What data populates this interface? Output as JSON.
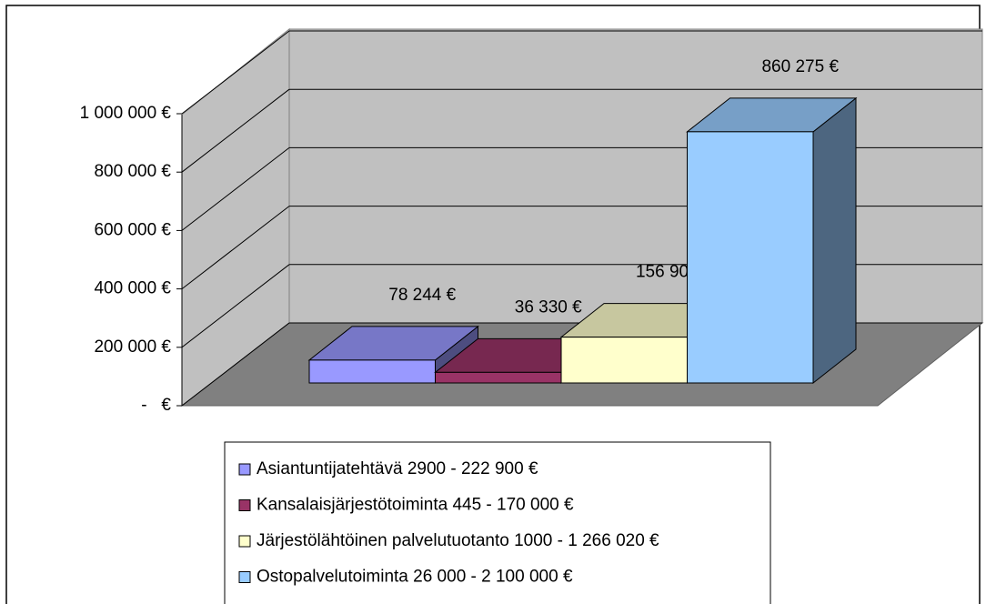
{
  "chart_data": {
    "type": "bar3d",
    "series": [
      {
        "name": "Asiantuntijatehtävä 2900 - 222 900 €",
        "color": "#9999ff",
        "values": [
          78244
        ],
        "value_labels": [
          "78 244 €"
        ]
      },
      {
        "name": "Kansalaisjärjestötoiminta 445 - 170 000 €",
        "color": "#993366",
        "values": [
          36330
        ],
        "value_labels": [
          "36 330 €"
        ]
      },
      {
        "name": "Järjestölähtöinen palvelutuotanto 1000 - 1 266 020 €",
        "color": "#ffffcc",
        "values": [
          156905
        ],
        "value_labels": [
          "156 905 €"
        ]
      },
      {
        "name": "Ostopalvelutoiminta 26 000 - 2 100 000 €",
        "color": "#99ccff",
        "values": [
          860275
        ],
        "value_labels": [
          "860 275 €"
        ]
      }
    ],
    "ylim": [
      0,
      1000000
    ],
    "yticks": [
      {
        "value": 0,
        "label": "-   €"
      },
      {
        "value": 200000,
        "label": "200 000 €"
      },
      {
        "value": 400000,
        "label": "400 000 €"
      },
      {
        "value": 600000,
        "label": "600 000 €"
      },
      {
        "value": 800000,
        "label": "800 000 €"
      },
      {
        "value": 1000000,
        "label": "1 000 000 €"
      }
    ],
    "grid": true,
    "legend": "bottom"
  }
}
